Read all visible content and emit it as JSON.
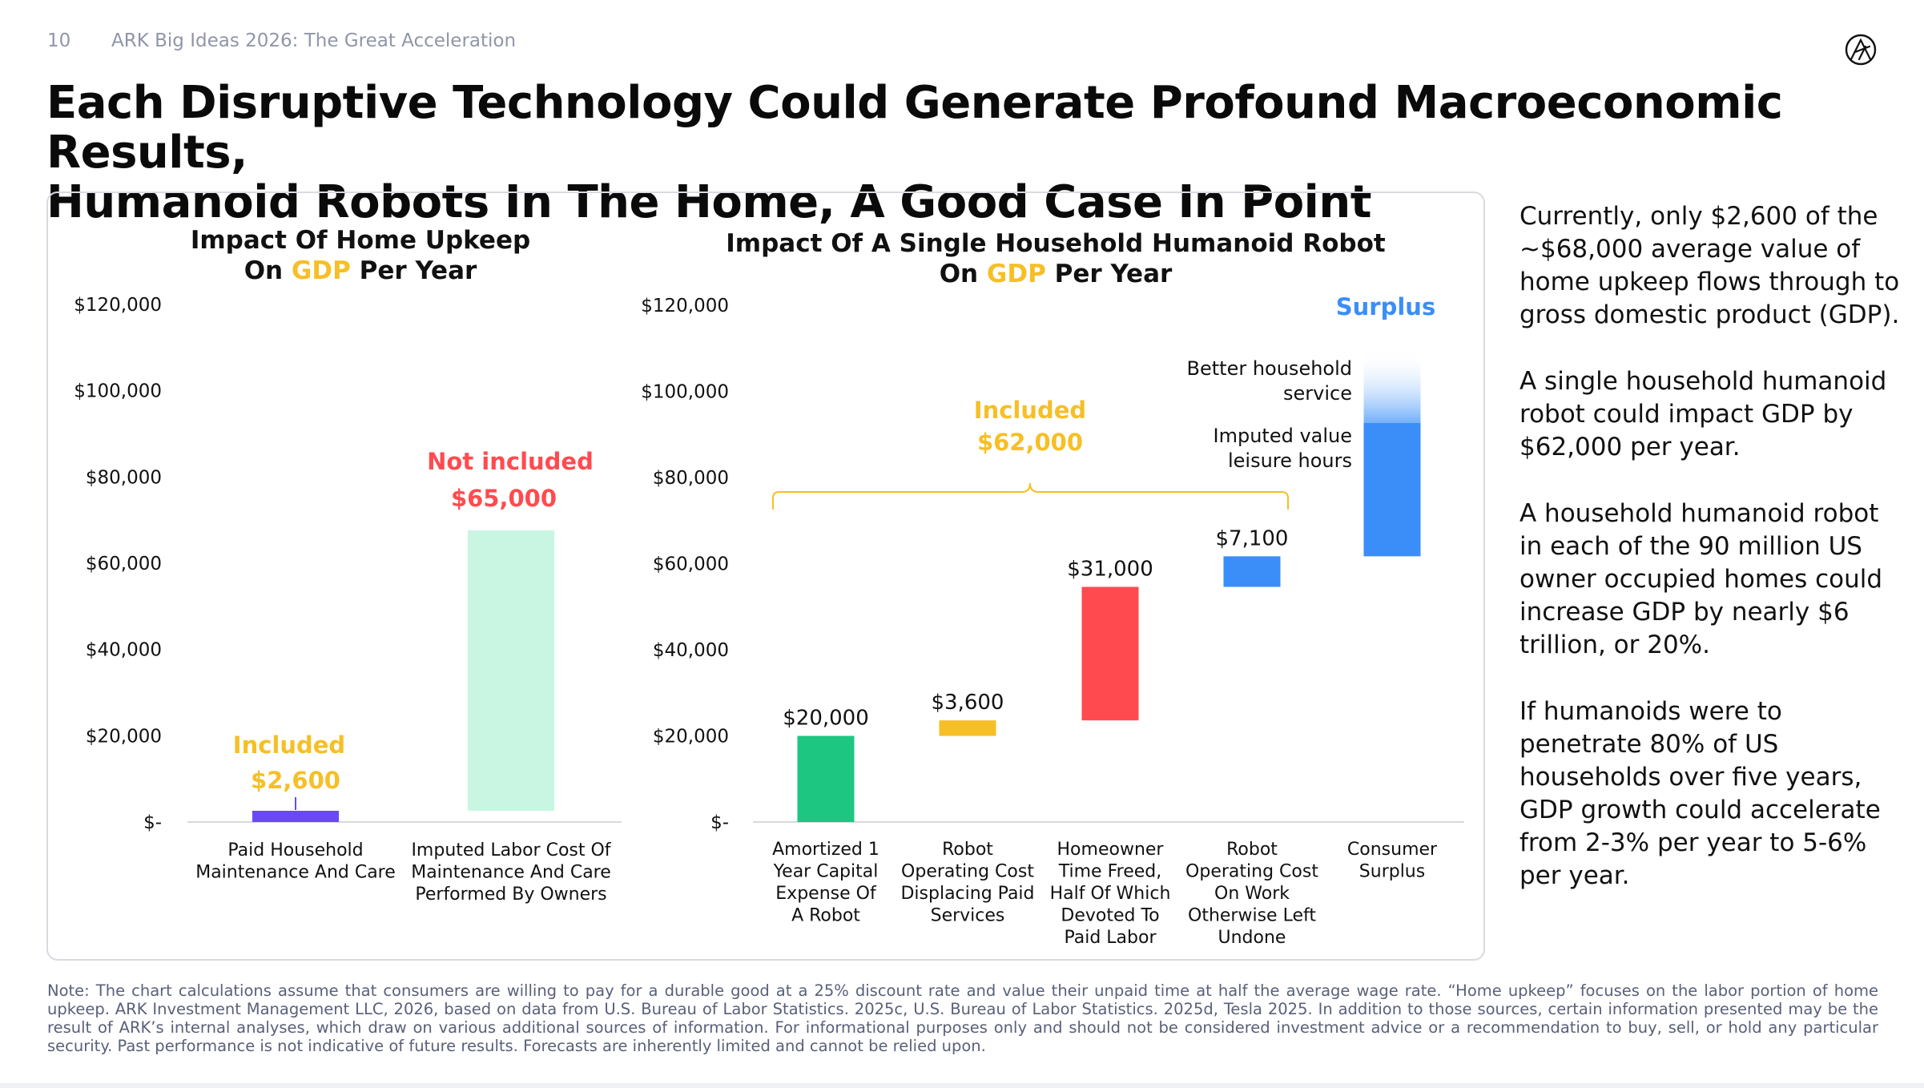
{
  "header": {
    "page_number": "10",
    "deck_title": "ARK Big Ideas 2026: The Great Acceleration",
    "logo_icon": "ark-logo-icon"
  },
  "title": {
    "line1": "Each Disruptive Technology Could Generate Profound Macroeconomic Results,",
    "line2": "Humanoid Robots In The Home, A Good Case In Point"
  },
  "colors": {
    "gdp_highlight": "#f6bf26",
    "included": "#f6bf26",
    "not_included": "#ff4b4f",
    "purple": "#6a48f5",
    "mint": "#c8f6e2",
    "green": "#1dc681",
    "yellow": "#f6bf26",
    "red": "#ff4b4f",
    "blue": "#3b8ef8",
    "surplus": "#3b8ef8"
  },
  "chart_data": [
    {
      "type": "bar",
      "title_line1": "Impact Of Home Upkeep",
      "title_line2_pre": "On ",
      "title_line2_gdp": "GDP",
      "title_line2_post": " Per Year",
      "y_ticks": [
        "$120,000",
        "$100,000",
        "$80,000",
        "$60,000",
        "$40,000",
        "$20,000",
        "$-"
      ],
      "ylim": [
        0,
        120000
      ],
      "bars": [
        {
          "label_lines": [
            "Paid Household",
            "Maintenance And Care"
          ],
          "value": 2600,
          "base": 0,
          "color": "purple",
          "annotation_top": "Included",
          "annotation_value": "$2,600"
        },
        {
          "label_lines": [
            "Imputed Labor Cost Of",
            "Maintenance And Care",
            "Performed By Owners"
          ],
          "value": 65000,
          "base": 2600,
          "color": "mint",
          "annotation_top": "Not included",
          "annotation_value": "$65,000"
        }
      ]
    },
    {
      "type": "waterfall",
      "title_line1": "Impact Of A Single Household Humanoid Robot",
      "title_line2_pre": "On ",
      "title_line2_gdp": "GDP",
      "title_line2_post": " Per Year",
      "y_ticks": [
        "$120,000",
        "$100,000",
        "$80,000",
        "$60,000",
        "$40,000",
        "$20,000",
        "$-"
      ],
      "ylim": [
        0,
        120000
      ],
      "bracket_label": "Included",
      "bracket_value": "$62,000",
      "surplus_label": "Surplus",
      "surplus_annotations": [
        [
          "Better household",
          "service"
        ],
        [
          "Imputed value",
          "leisure hours"
        ]
      ],
      "bars": [
        {
          "label_lines": [
            "Amortized 1",
            "Year Capital",
            "Expense Of",
            "A Robot"
          ],
          "value": 20000,
          "base": 0,
          "color": "green",
          "value_label": "$20,000"
        },
        {
          "label_lines": [
            "Robot",
            "Operating Cost",
            "Displacing Paid",
            "Services"
          ],
          "value": 3600,
          "base": 20000,
          "color": "yellow",
          "value_label": "$3,600"
        },
        {
          "label_lines": [
            "Homeowner",
            "Time Freed,",
            "Half Of Which",
            "Devoted To",
            "Paid Labor"
          ],
          "value": 31000,
          "base": 23600,
          "color": "red",
          "value_label": "$31,000"
        },
        {
          "label_lines": [
            "Robot",
            "Operating Cost",
            "On Work",
            "Otherwise Left",
            "Undone"
          ],
          "value": 7100,
          "base": 54600,
          "color": "blue",
          "value_label": "$7,100"
        },
        {
          "label_lines": [
            "Consumer",
            "Surplus"
          ],
          "value": 31000,
          "base": 61700,
          "color": "blue",
          "value_label": "",
          "fade_extra": 17000
        }
      ]
    }
  ],
  "side_text": [
    "Currently, only $2,600 of the ~$68,000 average value of home upkeep flows through to gross domestic product (GDP).",
    "A single household humanoid robot could impact GDP by $62,000 per year.",
    "A household humanoid robot in each of the 90 million US owner occupied homes could increase GDP by nearly $6 trillion, or 20%.",
    "If humanoids were to penetrate 80% of US households over five years, GDP growth could accelerate from 2-3% per year to 5-6% per year."
  ],
  "note": "Note: The chart calculations assume that consumers are willing to pay for a durable good at a 25% discount rate and value their unpaid time at half the average wage rate. “Home upkeep” focuses on the labor portion of home upkeep. ARK Investment Management LLC, 2026, based on data from U.S. Bureau of Labor Statistics. 2025c, U.S. Bureau of Labor Statistics. 2025d, Tesla 2025. In addition to those sources, certain information presented may be the result of ARK’s internal analyses, which draw on various additional sources of information. For informational purposes only and should not be considered investment advice or a recommendation to buy, sell, or hold any particular security. Past performance is not indicative of future results. Forecasts are inherently limited and cannot be relied upon."
}
